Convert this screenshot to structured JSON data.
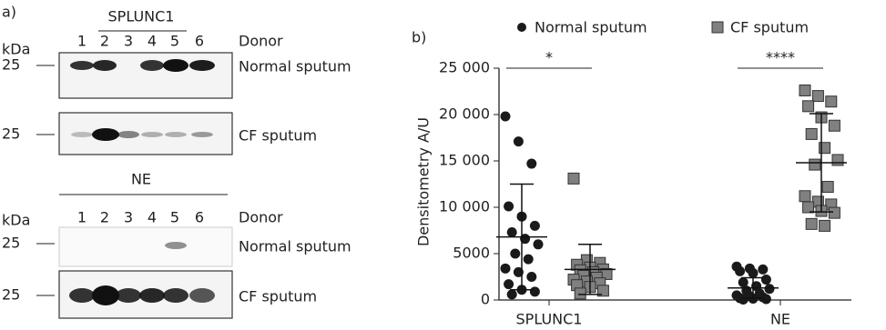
{
  "panel_a": {
    "label": "a)",
    "blots": [
      {
        "title": "SPLUNC1",
        "kda": "kDa",
        "lane_header": "Donor",
        "lanes": [
          "1",
          "2",
          "3",
          "4",
          "5",
          "6"
        ],
        "rows": [
          {
            "marker": "25",
            "label": "Normal sputum"
          },
          {
            "marker": "25",
            "label": "CF sputum"
          }
        ]
      },
      {
        "title": "NE",
        "kda": "kDa",
        "lane_header": "Donor",
        "lanes": [
          "1",
          "2",
          "3",
          "4",
          "5",
          "6"
        ],
        "rows": [
          {
            "marker": "25",
            "label": "Normal sputum"
          },
          {
            "marker": "25",
            "label": "CF sputum"
          }
        ]
      }
    ]
  },
  "chart_data": {
    "type": "strip",
    "label": "b)",
    "ylabel": "Densitometry A/U",
    "categories": [
      "SPLUNC1",
      "NE"
    ],
    "series": [
      {
        "name": "Normal sputum",
        "color": "#1a1a1a",
        "marker": "circle",
        "values": [
          [
            19800,
            17100,
            14700,
            10100,
            9000,
            8000,
            7300,
            6600,
            6000,
            5000,
            4400,
            3400,
            3000,
            2500,
            1700,
            1100,
            900,
            600
          ],
          [
            3600,
            3400,
            3300,
            3100,
            2900,
            2200,
            1900,
            1500,
            1200,
            1000,
            700,
            500,
            400,
            300,
            200,
            150,
            100,
            50
          ]
        ],
        "mean": [
          6800,
          1300
        ],
        "sd": [
          5700,
          1100
        ]
      },
      {
        "name": "CF sputum",
        "color": "#808080",
        "marker": "square",
        "values": [
          [
            13100,
            4300,
            4000,
            3800,
            3500,
            3300,
            3200,
            3000,
            2800,
            2600,
            2400,
            2200,
            2000,
            1800,
            1600,
            1400,
            1000,
            700
          ],
          [
            22600,
            22000,
            21400,
            20900,
            19700,
            18800,
            17900,
            16400,
            15100,
            14600,
            12200,
            11200,
            10600,
            10300,
            10000,
            9600,
            9400,
            8200,
            8000
          ]
        ],
        "mean": [
          3300,
          14800
        ],
        "sd": [
          2700,
          5300
        ]
      }
    ],
    "annotations": [
      "*",
      "****"
    ],
    "ylim": [
      0,
      25000
    ],
    "yticks": [
      0,
      5000,
      {
        "value": 10000,
        "label": "10 000"
      },
      {
        "value": 15000,
        "label": "15 000"
      },
      {
        "value": 20000,
        "label": "20 000"
      },
      {
        "value": 25000,
        "label": "25 000"
      }
    ],
    "legend": "top",
    "grid": false
  }
}
